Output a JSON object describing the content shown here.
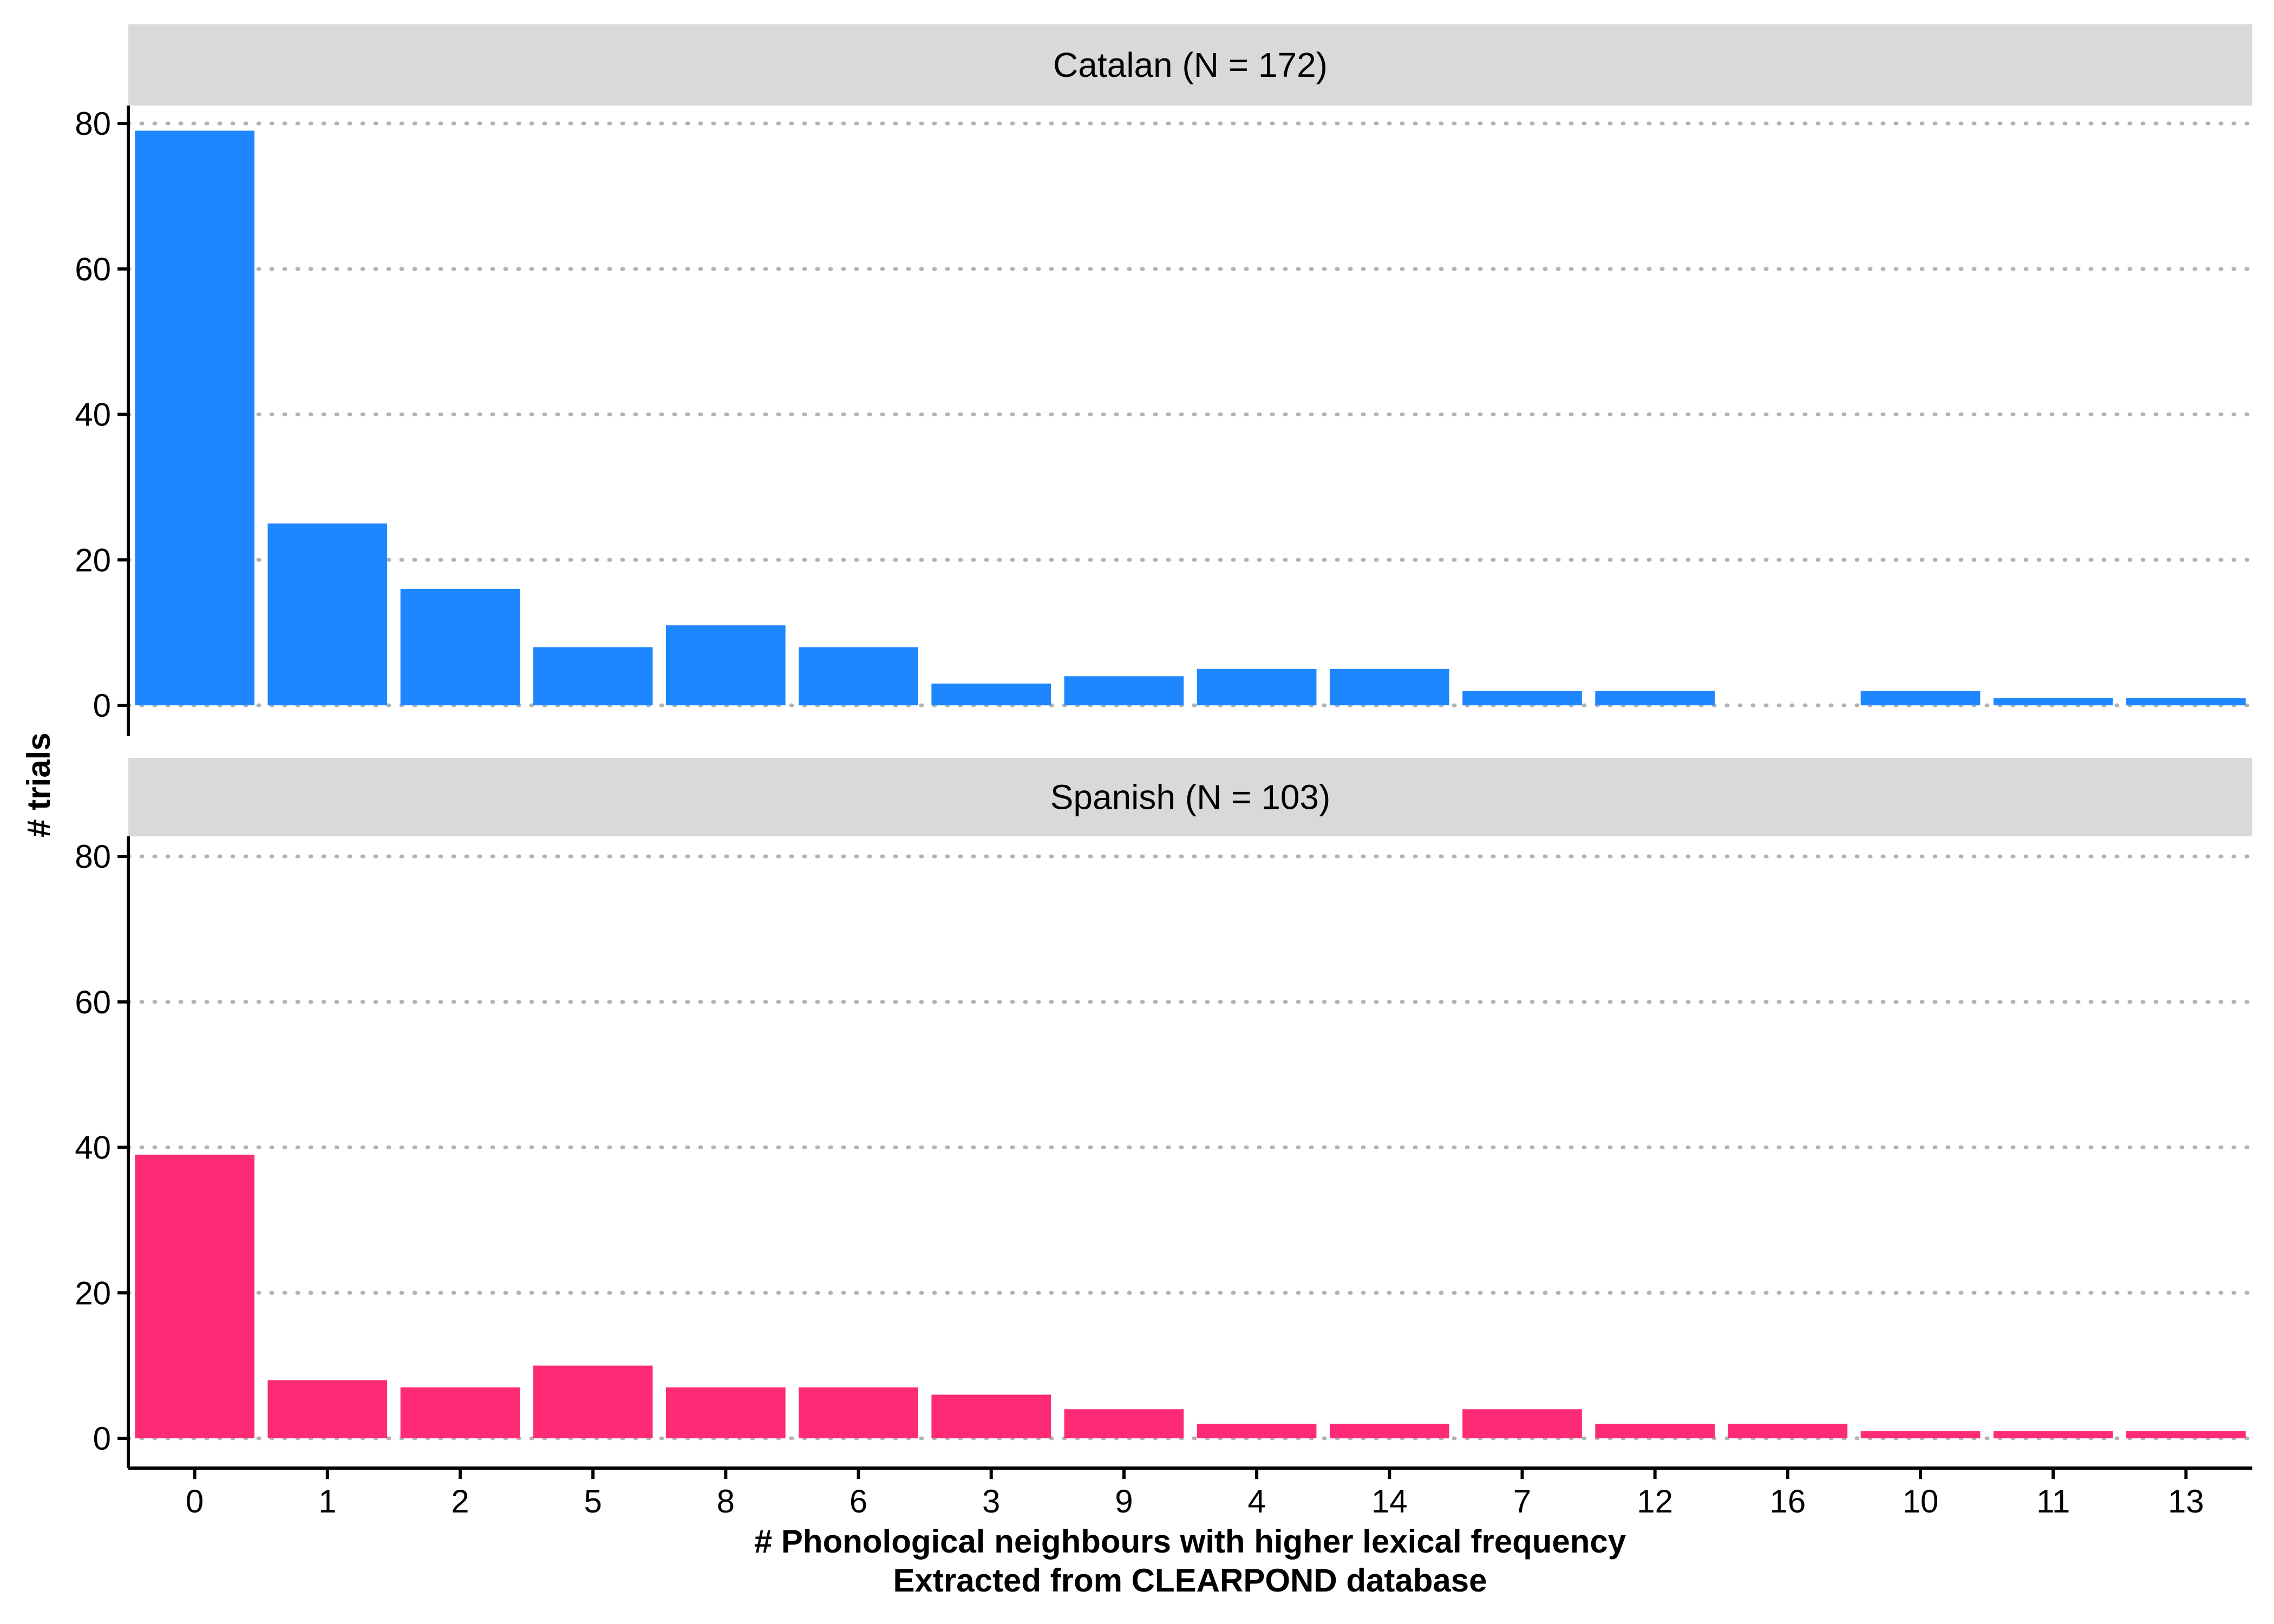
{
  "chart_data": {
    "type": "bar",
    "categories": [
      "0",
      "1",
      "2",
      "5",
      "8",
      "6",
      "3",
      "9",
      "4",
      "14",
      "7",
      "12",
      "16",
      "10",
      "11",
      "13"
    ],
    "panels": [
      {
        "strip_label": "Catalan (N = 172)",
        "color": "#1E87FF",
        "values": [
          79,
          25,
          16,
          8,
          11,
          8,
          3,
          4,
          5,
          5,
          2,
          2,
          0,
          2,
          1,
          1
        ]
      },
      {
        "strip_label": "Spanish (N = 103)",
        "color": "#FF2A75",
        "values": [
          39,
          8,
          7,
          10,
          7,
          7,
          6,
          4,
          2,
          2,
          4,
          2,
          2,
          1,
          1,
          1
        ]
      }
    ],
    "ylabel": "# trials",
    "xlabel_lines": [
      "# Phonological neighbours with higher lexical frequency",
      "Extracted from CLEARPOND database"
    ],
    "yticks": [
      0,
      20,
      40,
      60,
      80
    ],
    "ylim": [
      0,
      82
    ],
    "grid": "horizontal-dotted"
  }
}
